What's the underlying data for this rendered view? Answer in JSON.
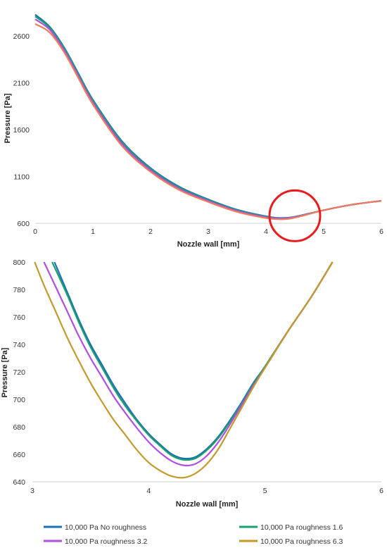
{
  "chart_data": [
    {
      "type": "line",
      "xlabel": "Nozzle wall [mm]",
      "ylabel": "Pressure [Pa]",
      "xlim": [
        0,
        6
      ],
      "ylim": [
        600,
        2850
      ],
      "xticks": [
        "0",
        "1",
        "2",
        "3",
        "4",
        "5",
        "6"
      ],
      "yticks": [
        "600",
        "1100",
        "1600",
        "2100",
        "2600"
      ],
      "x": [
        0,
        0.25,
        0.5,
        0.75,
        1,
        1.5,
        2,
        2.5,
        3,
        3.5,
        4,
        4.25,
        4.5,
        5,
        5.5,
        6
      ],
      "series": [
        {
          "name": "10,000 Pa No roughness",
          "color": "#1f6fb5",
          "values": [
            2830,
            2700,
            2480,
            2200,
            1920,
            1480,
            1190,
            990,
            855,
            745,
            675,
            657,
            670,
            740,
            800,
            840
          ]
        },
        {
          "name": "10,000 Pa roughness 1.6",
          "color": "#1aa06e",
          "values": [
            2810,
            2690,
            2470,
            2190,
            1910,
            1470,
            1180,
            980,
            848,
            740,
            672,
            656,
            669,
            740,
            800,
            840
          ]
        },
        {
          "name": "10,000 Pa roughness 3.2",
          "color": "#b04ee0",
          "values": [
            2780,
            2670,
            2450,
            2170,
            1890,
            1450,
            1165,
            968,
            838,
            732,
            665,
            652,
            666,
            740,
            800,
            840
          ]
        },
        {
          "name": "10,000 Pa roughness 6.3",
          "color": "#f07a5a",
          "values": [
            2730,
            2640,
            2430,
            2150,
            1870,
            1430,
            1150,
            955,
            828,
            722,
            656,
            643,
            660,
            740,
            800,
            840
          ]
        }
      ],
      "annotation": {
        "type": "circle",
        "center": [
          4.5,
          680
        ],
        "color": "#e81c1c"
      }
    },
    {
      "type": "line",
      "xlabel": "Nozzle wall [mm]",
      "ylabel": "Pressure [Pa]",
      "xlim": [
        3,
        6
      ],
      "ylim": [
        640,
        800
      ],
      "xticks": [
        "3",
        "4",
        "5",
        "6"
      ],
      "yticks": [
        "640",
        "660",
        "680",
        "700",
        "720",
        "740",
        "760",
        "780",
        "800"
      ],
      "series": [
        {
          "name": "10,000 Pa No roughness",
          "color": "#1f6fb5",
          "x": [
            3.19,
            3.3,
            3.4,
            3.5,
            3.6,
            3.7,
            3.8,
            3.9,
            4.0,
            4.1,
            4.2,
            4.3,
            4.4,
            4.5,
            4.6,
            4.7,
            4.8,
            4.9,
            5.0,
            5.2,
            5.4,
            5.58
          ],
          "values": [
            800,
            778,
            758,
            740,
            725,
            710,
            697,
            685,
            675,
            667,
            660,
            657,
            658,
            664,
            673,
            685,
            698,
            712,
            724,
            750,
            775,
            800
          ]
        },
        {
          "name": "10,000 Pa roughness 1.6",
          "color": "#1aa06e",
          "x": [
            3.17,
            3.3,
            3.4,
            3.5,
            3.6,
            3.7,
            3.8,
            3.9,
            4.0,
            4.1,
            4.2,
            4.3,
            4.4,
            4.5,
            4.6,
            4.7,
            4.8,
            4.9,
            5.0,
            5.2,
            5.4,
            5.58
          ],
          "values": [
            800,
            776,
            756,
            738,
            723,
            708,
            695,
            684,
            674,
            666,
            659,
            656,
            657,
            663,
            672,
            684,
            697,
            711,
            724,
            750,
            775,
            800
          ]
        },
        {
          "name": "10,000 Pa roughness 3.2",
          "color": "#b04ee0",
          "x": [
            3.1,
            3.2,
            3.3,
            3.4,
            3.5,
            3.6,
            3.7,
            3.8,
            3.9,
            4.0,
            4.1,
            4.2,
            4.3,
            4.4,
            4.5,
            4.6,
            4.7,
            4.8,
            4.9,
            5.0,
            5.2,
            5.4,
            5.58
          ],
          "values": [
            800,
            782,
            764,
            746,
            730,
            716,
            702,
            690,
            679,
            669,
            661,
            655,
            652,
            653,
            659,
            669,
            682,
            696,
            710,
            723,
            750,
            775,
            800
          ]
        },
        {
          "name": "10,000 Pa roughness 6.3",
          "color": "#c49a2a",
          "x": [
            3.02,
            3.1,
            3.2,
            3.3,
            3.4,
            3.5,
            3.6,
            3.7,
            3.8,
            3.9,
            4.0,
            4.1,
            4.2,
            4.3,
            4.4,
            4.5,
            4.6,
            4.7,
            4.8,
            4.9,
            5.0,
            5.2,
            5.4,
            5.58
          ],
          "values": [
            800,
            783,
            764,
            745,
            728,
            712,
            698,
            685,
            674,
            663,
            654,
            648,
            644,
            643,
            646,
            653,
            664,
            679,
            694,
            709,
            723,
            750,
            775,
            800
          ]
        }
      ]
    }
  ]
}
